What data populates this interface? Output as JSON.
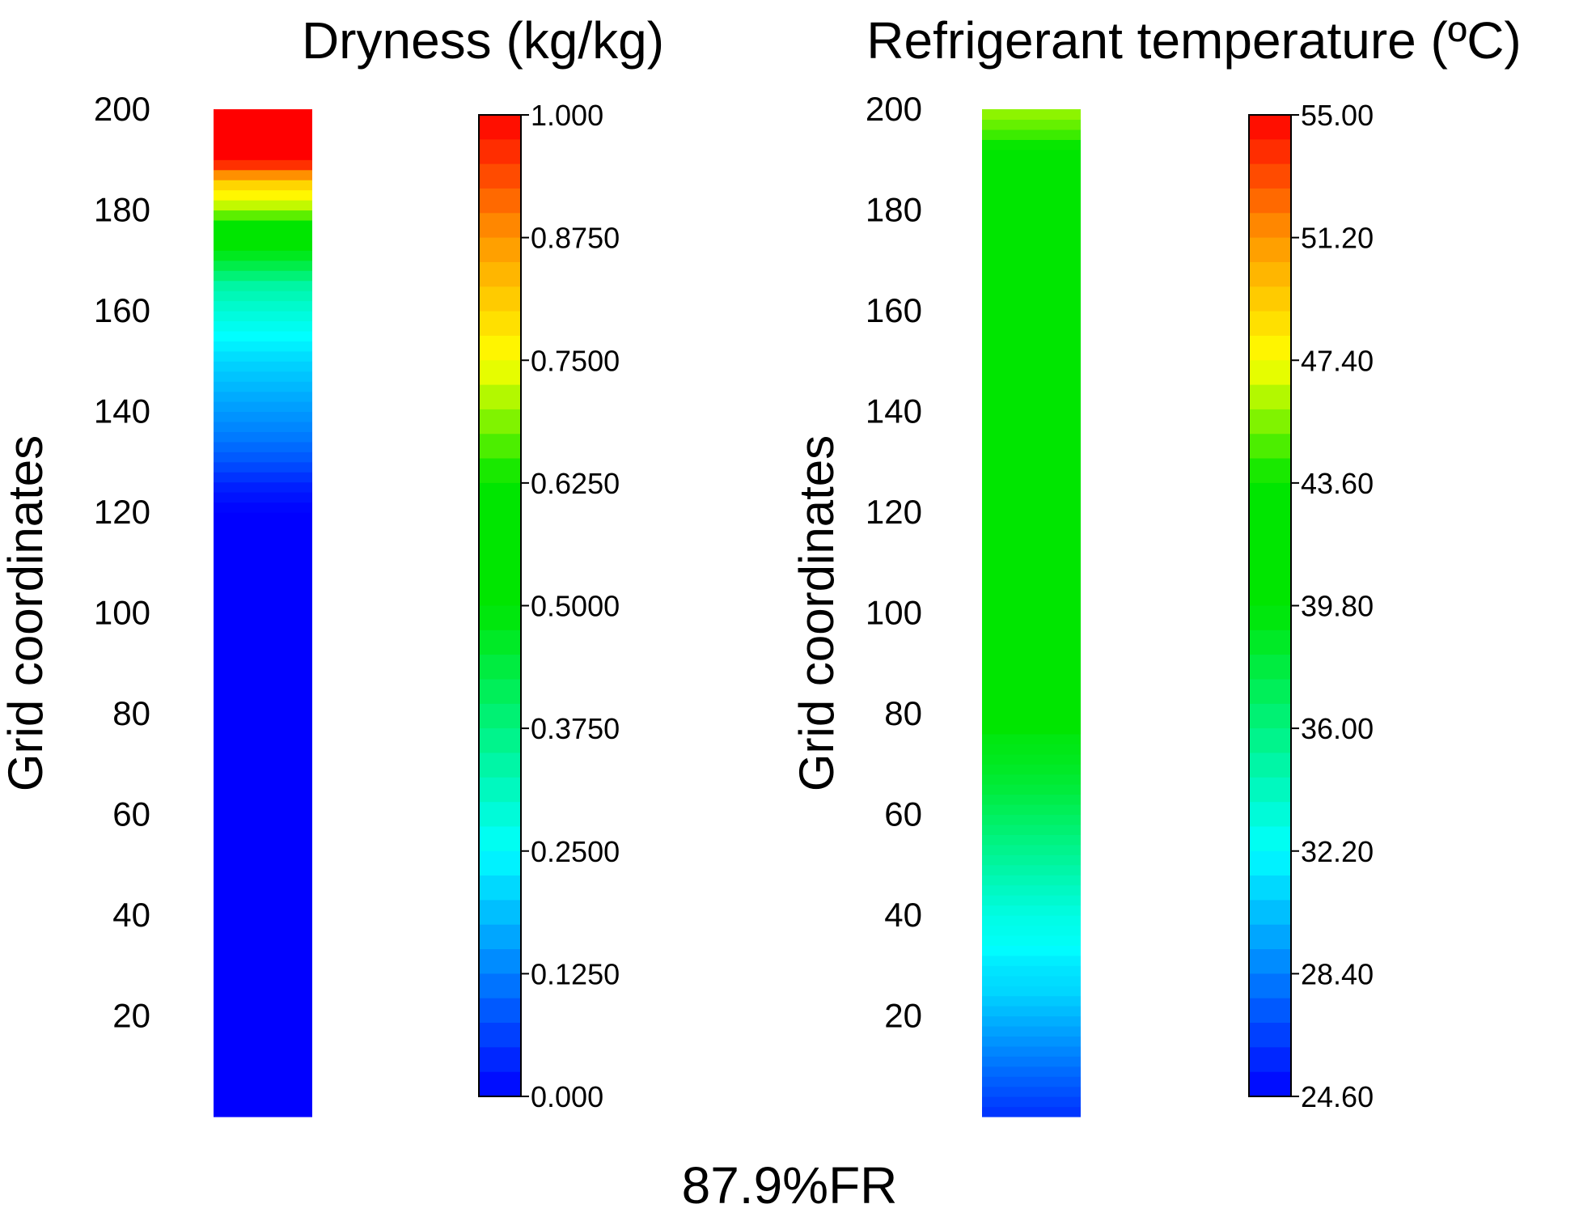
{
  "figure": {
    "caption": "87.9%FR"
  },
  "chart_data": [
    {
      "type": "heatmap",
      "title": "Dryness (kg/kg)",
      "ylabel": "Grid coordinates",
      "ylim": [
        0,
        200
      ],
      "yticks": [
        20,
        40,
        60,
        80,
        100,
        120,
        140,
        160,
        180,
        200
      ],
      "colorbar": {
        "min": 0.0,
        "max": 1.0,
        "tick_values": [
          0.0,
          0.125,
          0.25,
          0.375,
          0.5,
          0.625,
          0.75,
          0.875,
          1.0
        ],
        "tick_labels": [
          "0.000",
          "0.1250",
          "0.2500",
          "0.3750",
          "0.5000",
          "0.6250",
          "0.7500",
          "0.8750",
          "1.000"
        ]
      },
      "profile": {
        "grid": [
          0,
          120,
          125,
          130,
          135,
          140,
          145,
          150,
          155,
          160,
          165,
          170,
          175,
          180,
          185,
          190,
          200
        ],
        "values": [
          0.0,
          0.0,
          0.03,
          0.08,
          0.12,
          0.15,
          0.18,
          0.21,
          0.25,
          0.29,
          0.34,
          0.45,
          0.55,
          0.7,
          0.8,
          1.0,
          1.0
        ]
      }
    },
    {
      "type": "heatmap",
      "title": "Refrigerant temperature (ºC)",
      "ylabel": "Grid coordinates",
      "ylim": [
        0,
        200
      ],
      "yticks": [
        20,
        40,
        60,
        80,
        100,
        120,
        140,
        160,
        180,
        200
      ],
      "colorbar": {
        "min": 24.6,
        "max": 55.0,
        "tick_values": [
          24.6,
          28.4,
          32.2,
          36.0,
          39.8,
          43.6,
          47.4,
          51.2,
          55.0
        ],
        "tick_labels": [
          "24.60",
          "28.40",
          "32.20",
          "36.00",
          "39.80",
          "43.60",
          "47.40",
          "51.20",
          "55.00"
        ]
      },
      "profile": {
        "grid": [
          0,
          5,
          10,
          15,
          20,
          25,
          30,
          35,
          40,
          45,
          50,
          55,
          60,
          65,
          70,
          75,
          80,
          189,
          190,
          195,
          200
        ],
        "values": [
          26.0,
          27.0,
          28.0,
          29.0,
          30.0,
          31.0,
          31.5,
          32.5,
          33.0,
          34.0,
          35.0,
          36.0,
          37.0,
          38.0,
          38.8,
          39.3,
          40.5,
          40.5,
          42.5,
          44.5,
          46.0
        ]
      }
    }
  ]
}
